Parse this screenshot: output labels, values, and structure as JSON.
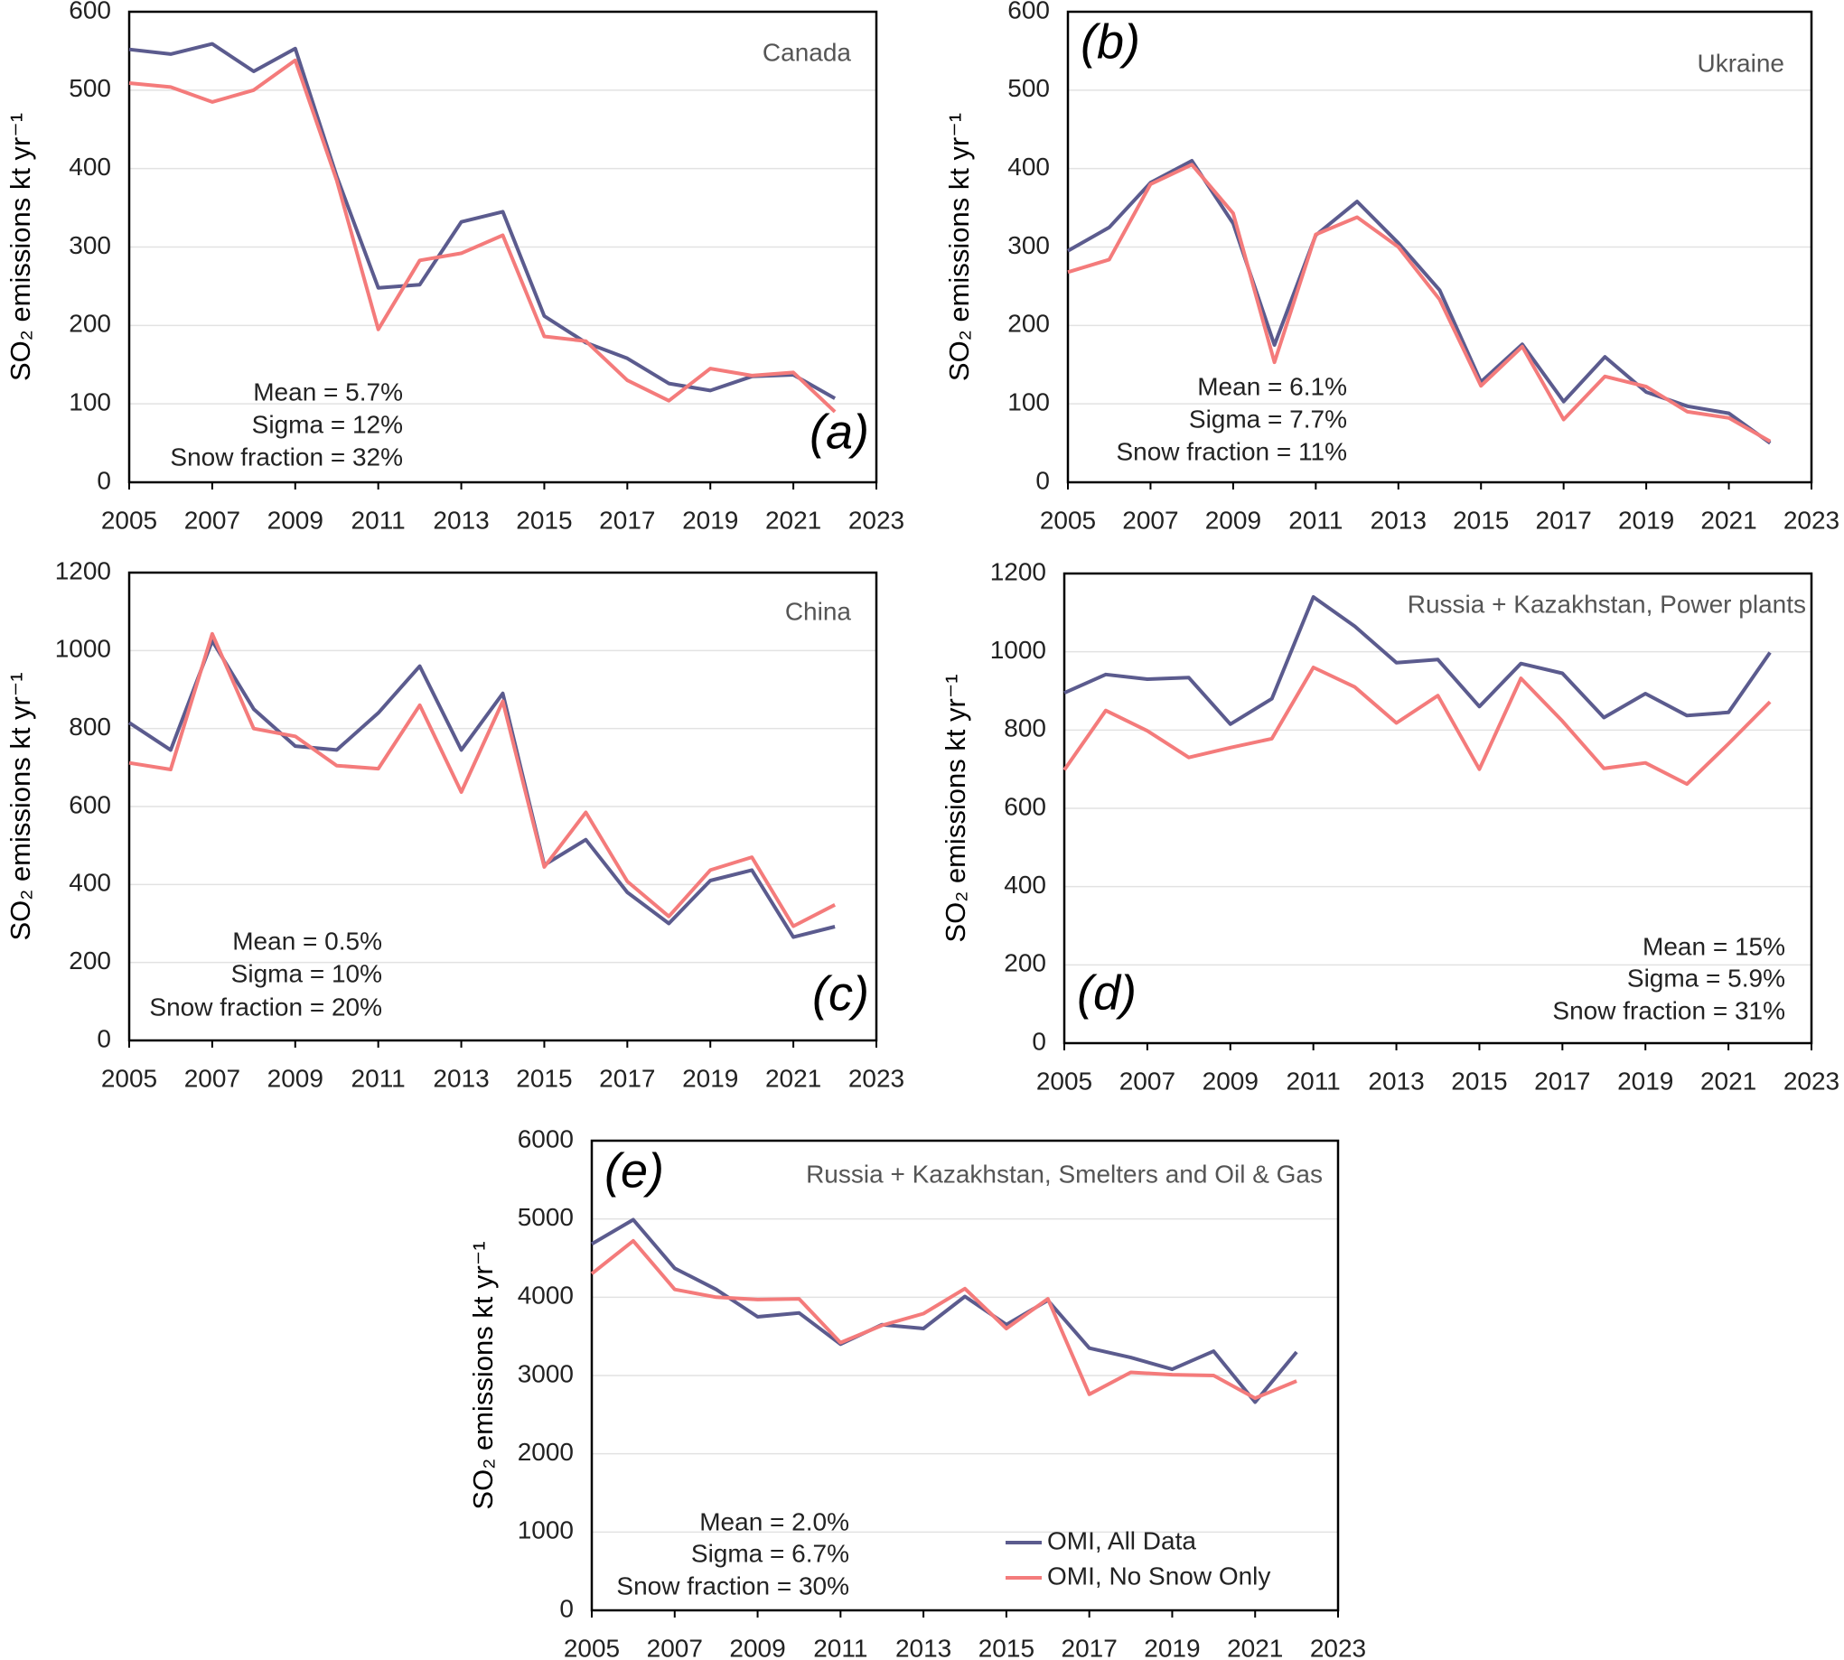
{
  "chart_data": [
    {
      "type": "line",
      "label": "Canada",
      "panel": "(a)",
      "stats": [
        "Mean = 5.7%",
        "Sigma = 12%",
        "Snow fraction = 32%"
      ],
      "ylabel": "SO₂ emissions kt yr⁻¹",
      "x": [
        2005,
        2006,
        2007,
        2008,
        2009,
        2010,
        2011,
        2012,
        2013,
        2014,
        2015,
        2016,
        2017,
        2018,
        2019,
        2020,
        2021,
        2022
      ],
      "series": [
        {
          "color": "#5b5b8e",
          "values": [
            552,
            546,
            559,
            524,
            553,
            390,
            248,
            252,
            332,
            345,
            212,
            178,
            158,
            126,
            117,
            135,
            137,
            107
          ]
        },
        {
          "color": "#f47b7b",
          "values": [
            509,
            504,
            485,
            500,
            538,
            385,
            195,
            283,
            292,
            315,
            186,
            180,
            130,
            104,
            145,
            136,
            140,
            90
          ]
        }
      ],
      "xlim": [
        2005,
        2023
      ],
      "xticks": [
        2005,
        2007,
        2009,
        2011,
        2013,
        2015,
        2017,
        2019,
        2021,
        2023
      ],
      "ylim": [
        0,
        600
      ],
      "yticks": [
        0,
        100,
        200,
        300,
        400,
        500,
        600
      ],
      "grid": true
    },
    {
      "type": "line",
      "label": "Ukraine",
      "panel": "(b)",
      "stats": [
        "Mean = 6.1%",
        "Sigma = 7.7%",
        "Snow fraction = 11%"
      ],
      "ylabel": "SO₂ emissions kt yr⁻¹",
      "x": [
        2005,
        2006,
        2007,
        2008,
        2009,
        2010,
        2011,
        2012,
        2013,
        2014,
        2015,
        2016,
        2017,
        2018,
        2019,
        2020,
        2021,
        2022
      ],
      "series": [
        {
          "color": "#5b5b8e",
          "values": [
            295,
            325,
            382,
            410,
            330,
            175,
            315,
            358,
            305,
            245,
            128,
            176,
            103,
            160,
            115,
            97,
            88,
            50
          ]
        },
        {
          "color": "#f47b7b",
          "values": [
            268,
            284,
            380,
            405,
            343,
            153,
            316,
            338,
            300,
            233,
            123,
            173,
            80,
            135,
            122,
            90,
            82,
            52
          ]
        }
      ],
      "xlim": [
        2005,
        2023
      ],
      "xticks": [
        2005,
        2007,
        2009,
        2011,
        2013,
        2015,
        2017,
        2019,
        2021,
        2023
      ],
      "ylim": [
        0,
        600
      ],
      "yticks": [
        0,
        100,
        200,
        300,
        400,
        500,
        600
      ],
      "grid": true
    },
    {
      "type": "line",
      "label": "China",
      "panel": "(c)",
      "stats": [
        "Mean = 0.5%",
        "Sigma = 10%",
        "Snow fraction = 20%"
      ],
      "ylabel": "SO₂ emissions kt yr⁻¹",
      "x": [
        2005,
        2006,
        2007,
        2008,
        2009,
        2010,
        2011,
        2012,
        2013,
        2014,
        2015,
        2016,
        2017,
        2018,
        2019,
        2020,
        2021,
        2022
      ],
      "series": [
        {
          "color": "#5b5b8e",
          "values": [
            815,
            745,
            1025,
            850,
            755,
            745,
            840,
            960,
            745,
            890,
            450,
            515,
            380,
            300,
            410,
            437,
            265,
            292
          ]
        },
        {
          "color": "#f47b7b",
          "values": [
            712,
            695,
            1043,
            800,
            780,
            705,
            697,
            860,
            637,
            870,
            445,
            585,
            408,
            318,
            437,
            470,
            293,
            348
          ]
        }
      ],
      "xlim": [
        2005,
        2023
      ],
      "xticks": [
        2005,
        2007,
        2009,
        2011,
        2013,
        2015,
        2017,
        2019,
        2021,
        2023
      ],
      "ylim": [
        0,
        1200
      ],
      "yticks": [
        0,
        200,
        400,
        600,
        800,
        1000,
        1200
      ],
      "grid": true
    },
    {
      "type": "line",
      "label": "Russia + Kazakhstan, Power plants",
      "panel": "(d)",
      "stats": [
        "Mean = 15%",
        "Sigma = 5.9%",
        "Snow fraction = 31%"
      ],
      "ylabel": "SO₂ emissions kt yr⁻¹",
      "x": [
        2005,
        2006,
        2007,
        2008,
        2009,
        2010,
        2011,
        2012,
        2013,
        2014,
        2015,
        2016,
        2017,
        2018,
        2019,
        2020,
        2021,
        2022
      ],
      "series": [
        {
          "color": "#5b5b8e",
          "values": [
            895,
            942,
            930,
            934,
            815,
            880,
            1140,
            1065,
            972,
            980,
            860,
            970,
            945,
            832,
            893,
            837,
            845,
            998
          ]
        },
        {
          "color": "#f47b7b",
          "values": [
            698,
            850,
            798,
            730,
            755,
            778,
            960,
            910,
            818,
            888,
            700,
            932,
            823,
            702,
            716,
            662,
            765,
            872
          ]
        }
      ],
      "xlim": [
        2005,
        2023
      ],
      "xticks": [
        2005,
        2007,
        2009,
        2011,
        2013,
        2015,
        2017,
        2019,
        2021,
        2023
      ],
      "ylim": [
        0,
        1200
      ],
      "yticks": [
        0,
        200,
        400,
        600,
        800,
        1000,
        1200
      ],
      "grid": true
    },
    {
      "type": "line",
      "label": "Russia + Kazakhstan, Smelters and Oil & Gas",
      "panel": "(e)",
      "stats": [
        "Mean = 2.0%",
        "Sigma = 6.7%",
        "Snow fraction = 30%"
      ],
      "ylabel": "SO₂ emissions kt yr⁻¹",
      "x": [
        2005,
        2006,
        2007,
        2008,
        2009,
        2010,
        2011,
        2012,
        2013,
        2014,
        2015,
        2016,
        2017,
        2018,
        2019,
        2020,
        2021,
        2022
      ],
      "series": [
        {
          "name": "OMI, All Data",
          "color": "#5b5b8e",
          "values": [
            4680,
            4990,
            4370,
            4100,
            3750,
            3800,
            3400,
            3650,
            3600,
            4010,
            3650,
            3960,
            3350,
            3230,
            3080,
            3310,
            2660,
            3300
          ]
        },
        {
          "name": "OMI, No Snow Only",
          "color": "#f47b7b",
          "values": [
            4300,
            4720,
            4100,
            4000,
            3970,
            3980,
            3420,
            3640,
            3790,
            4110,
            3600,
            3980,
            2760,
            3040,
            3010,
            3000,
            2710,
            2930
          ]
        }
      ],
      "xlim": [
        2005,
        2023
      ],
      "xticks": [
        2005,
        2007,
        2009,
        2011,
        2013,
        2015,
        2017,
        2019,
        2021,
        2023
      ],
      "ylim": [
        0,
        6000
      ],
      "yticks": [
        0,
        1000,
        2000,
        3000,
        4000,
        5000,
        6000
      ],
      "grid": true
    }
  ]
}
